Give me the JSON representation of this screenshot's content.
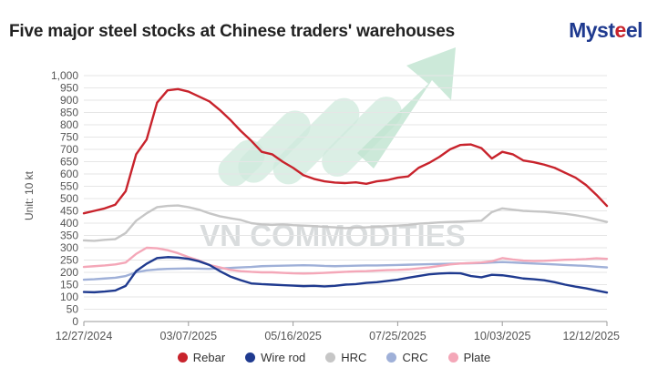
{
  "header": {
    "title": "Five major steel stocks at Chinese traders' warehouses",
    "logo_main": "Myst",
    "logo_accent": "e",
    "logo_tail": "el"
  },
  "watermark": {
    "text": "VN COMMODITIES"
  },
  "colors": {
    "rebar": "#c8232c",
    "wire_rod": "#1f3a8f",
    "hrc": "#c6c6c6",
    "crc": "#9fb0d8",
    "plate": "#f4a7b8",
    "grid": "#e6e6e6",
    "watermark": "#c9e6d8"
  },
  "chart_data": {
    "type": "line",
    "title": "Five major steel stocks at Chinese traders' warehouses",
    "ylabel": "Unit: 10 kt",
    "xlabel": "",
    "ylim": [
      0,
      1000
    ],
    "yticks": [
      0,
      50,
      100,
      150,
      200,
      250,
      300,
      350,
      400,
      450,
      500,
      550,
      600,
      650,
      700,
      750,
      800,
      850,
      900,
      950,
      1000
    ],
    "ytick_labels": [
      "0",
      "50",
      "100",
      "150",
      "200",
      "250",
      "300",
      "350",
      "400",
      "450",
      "500",
      "550",
      "600",
      "650",
      "700",
      "750",
      "800",
      "850",
      "900",
      "950",
      "1,000"
    ],
    "xtick_labels": [
      "12/27/2024",
      "03/07/2025",
      "05/16/2025",
      "07/25/2025",
      "10/03/2025",
      "12/12/2025"
    ],
    "x_week_index": [
      0,
      1,
      2,
      3,
      4,
      5,
      6,
      7,
      8,
      9,
      10,
      11,
      12,
      13,
      14,
      15,
      16,
      17,
      18,
      19,
      20,
      21,
      22,
      23,
      24,
      25,
      26,
      27,
      28,
      29,
      30,
      31,
      32,
      33,
      34,
      35,
      36,
      37,
      38,
      39,
      40,
      41,
      42,
      43,
      44,
      45,
      46,
      47,
      48,
      49,
      50
    ],
    "grid": true,
    "legend_position": "bottom",
    "series": [
      {
        "name": "Rebar",
        "color_key": "rebar",
        "values": [
          440,
          450,
          460,
          475,
          530,
          680,
          740,
          890,
          940,
          945,
          935,
          915,
          895,
          860,
          820,
          775,
          735,
          690,
          680,
          650,
          625,
          595,
          580,
          570,
          565,
          563,
          566,
          560,
          570,
          575,
          585,
          590,
          625,
          645,
          670,
          700,
          718,
          720,
          705,
          663,
          690,
          680,
          655,
          648,
          638,
          625,
          605,
          585,
          555,
          515,
          470
        ]
      },
      {
        "name": "Wire rod",
        "color_key": "wire_rod",
        "values": [
          120,
          119,
          122,
          126,
          145,
          205,
          235,
          258,
          262,
          260,
          255,
          245,
          230,
          205,
          183,
          168,
          155,
          152,
          150,
          148,
          146,
          144,
          145,
          143,
          145,
          150,
          152,
          157,
          160,
          165,
          170,
          178,
          185,
          192,
          195,
          197,
          196,
          185,
          180,
          190,
          188,
          182,
          175,
          172,
          168,
          160,
          150,
          142,
          135,
          126,
          118
        ]
      },
      {
        "name": "HRC",
        "color_key": "hrc",
        "values": [
          330,
          328,
          332,
          335,
          360,
          410,
          440,
          465,
          470,
          472,
          465,
          455,
          440,
          428,
          420,
          413,
          400,
          395,
          393,
          395,
          392,
          390,
          388,
          385,
          383,
          380,
          382,
          383,
          385,
          388,
          390,
          393,
          398,
          400,
          403,
          405,
          406,
          408,
          410,
          445,
          460,
          455,
          450,
          448,
          446,
          442,
          438,
          432,
          425,
          415,
          405
        ]
      },
      {
        "name": "CRC",
        "color_key": "crc",
        "values": [
          170,
          172,
          175,
          178,
          185,
          200,
          208,
          212,
          214,
          215,
          216,
          215,
          214,
          216,
          218,
          220,
          222,
          225,
          226,
          227,
          228,
          229,
          228,
          226,
          225,
          226,
          227,
          228,
          228,
          229,
          230,
          231,
          232,
          233,
          234,
          235,
          236,
          237,
          238,
          240,
          242,
          240,
          238,
          236,
          234,
          232,
          230,
          228,
          226,
          223,
          220
        ]
      },
      {
        "name": "Plate",
        "color_key": "plate",
        "values": [
          222,
          225,
          228,
          232,
          240,
          275,
          300,
          298,
          290,
          278,
          262,
          248,
          230,
          220,
          210,
          205,
          202,
          200,
          200,
          198,
          196,
          195,
          196,
          198,
          200,
          202,
          204,
          205,
          207,
          209,
          210,
          212,
          216,
          220,
          226,
          232,
          236,
          238,
          240,
          245,
          258,
          252,
          248,
          246,
          247,
          249,
          251,
          252,
          254,
          257,
          255
        ]
      }
    ]
  }
}
